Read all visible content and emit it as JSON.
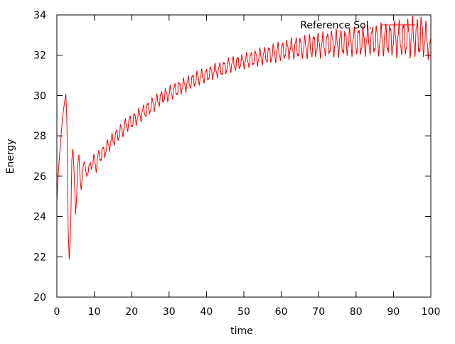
{
  "chart_data": {
    "type": "line",
    "title": "",
    "xlabel": "time",
    "ylabel": "Energy",
    "xlim": [
      0,
      100
    ],
    "ylim": [
      20,
      34
    ],
    "xticks": [
      0,
      10,
      20,
      30,
      40,
      50,
      60,
      70,
      80,
      90,
      100
    ],
    "yticks": [
      20,
      22,
      24,
      26,
      28,
      30,
      32,
      34
    ],
    "grid": false,
    "legend_position": "top-right",
    "series": [
      {
        "name": "Reference Sol.",
        "color": "#ff0000",
        "x": [
          0,
          0.5,
          1,
          1.5,
          2,
          2.4,
          2.7,
          3,
          3.3,
          3.7,
          4,
          4.3,
          4.7,
          5,
          5.3,
          5.6,
          5.9,
          6.2,
          6.5,
          6.8,
          7.1,
          7.4,
          7.7,
          8,
          8.5,
          9,
          9.5,
          10,
          10.5,
          11,
          12,
          13,
          14,
          15,
          16,
          17,
          18,
          19,
          20,
          22,
          24,
          26,
          28,
          30,
          32,
          34,
          36,
          38,
          40,
          42,
          44,
          46,
          48,
          50,
          52,
          54,
          56,
          58,
          60,
          62,
          64,
          66,
          68,
          70,
          72,
          74,
          76,
          78,
          80,
          82,
          84,
          86,
          88,
          90,
          91,
          92,
          93,
          94,
          95,
          96,
          97,
          97.5,
          98,
          99,
          100
        ],
        "y": [
          24.8,
          26.5,
          27.7,
          28.9,
          29.6,
          30.1,
          28.5,
          23.6,
          21.8,
          23.5,
          26.8,
          27.4,
          25.8,
          24.1,
          25.0,
          26.6,
          27.1,
          25.9,
          25.3,
          26.0,
          26.6,
          26.7,
          26.3,
          26.0,
          26.3,
          26.6,
          26.6,
          26.8,
          26.5,
          26.9,
          27.1,
          27.3,
          27.6,
          27.8,
          28.0,
          28.2,
          28.4,
          28.6,
          28.7,
          29.0,
          29.3,
          29.6,
          29.9,
          30.1,
          30.3,
          30.5,
          30.7,
          30.9,
          31.0,
          31.2,
          31.3,
          31.5,
          31.6,
          31.7,
          31.8,
          31.9,
          32.0,
          32.1,
          32.2,
          32.3,
          32.35,
          32.4,
          32.45,
          32.5,
          32.55,
          32.6,
          32.6,
          32.65,
          32.7,
          32.7,
          32.75,
          32.75,
          32.8,
          32.8,
          32.8,
          32.85,
          32.85,
          32.85,
          32.9,
          32.9,
          32.9,
          33.0,
          32.9,
          32.7,
          32.3
        ],
        "oscillation_amplitude": [
          0,
          0,
          0,
          0,
          0,
          0,
          0,
          0,
          0,
          0,
          0,
          0,
          0,
          0,
          0,
          0,
          0,
          0,
          0,
          0,
          0,
          0,
          0,
          0,
          0.15,
          0.2,
          0.22,
          0.25,
          0.25,
          0.28,
          0.3,
          0.3,
          0.3,
          0.3,
          0.3,
          0.3,
          0.3,
          0.3,
          0.3,
          0.3,
          0.3,
          0.3,
          0.3,
          0.3,
          0.3,
          0.3,
          0.3,
          0.3,
          0.3,
          0.3,
          0.3,
          0.3,
          0.3,
          0.3,
          0.32,
          0.35,
          0.35,
          0.38,
          0.4,
          0.4,
          0.45,
          0.45,
          0.5,
          0.5,
          0.5,
          0.55,
          0.55,
          0.55,
          0.6,
          0.6,
          0.6,
          0.65,
          0.65,
          0.7,
          0.75,
          0.75,
          0.75,
          0.8,
          0.8,
          0.8,
          0.85,
          0.85,
          0.8,
          0.7,
          0.4
        ],
        "oscillation_period": 1.2
      }
    ]
  }
}
